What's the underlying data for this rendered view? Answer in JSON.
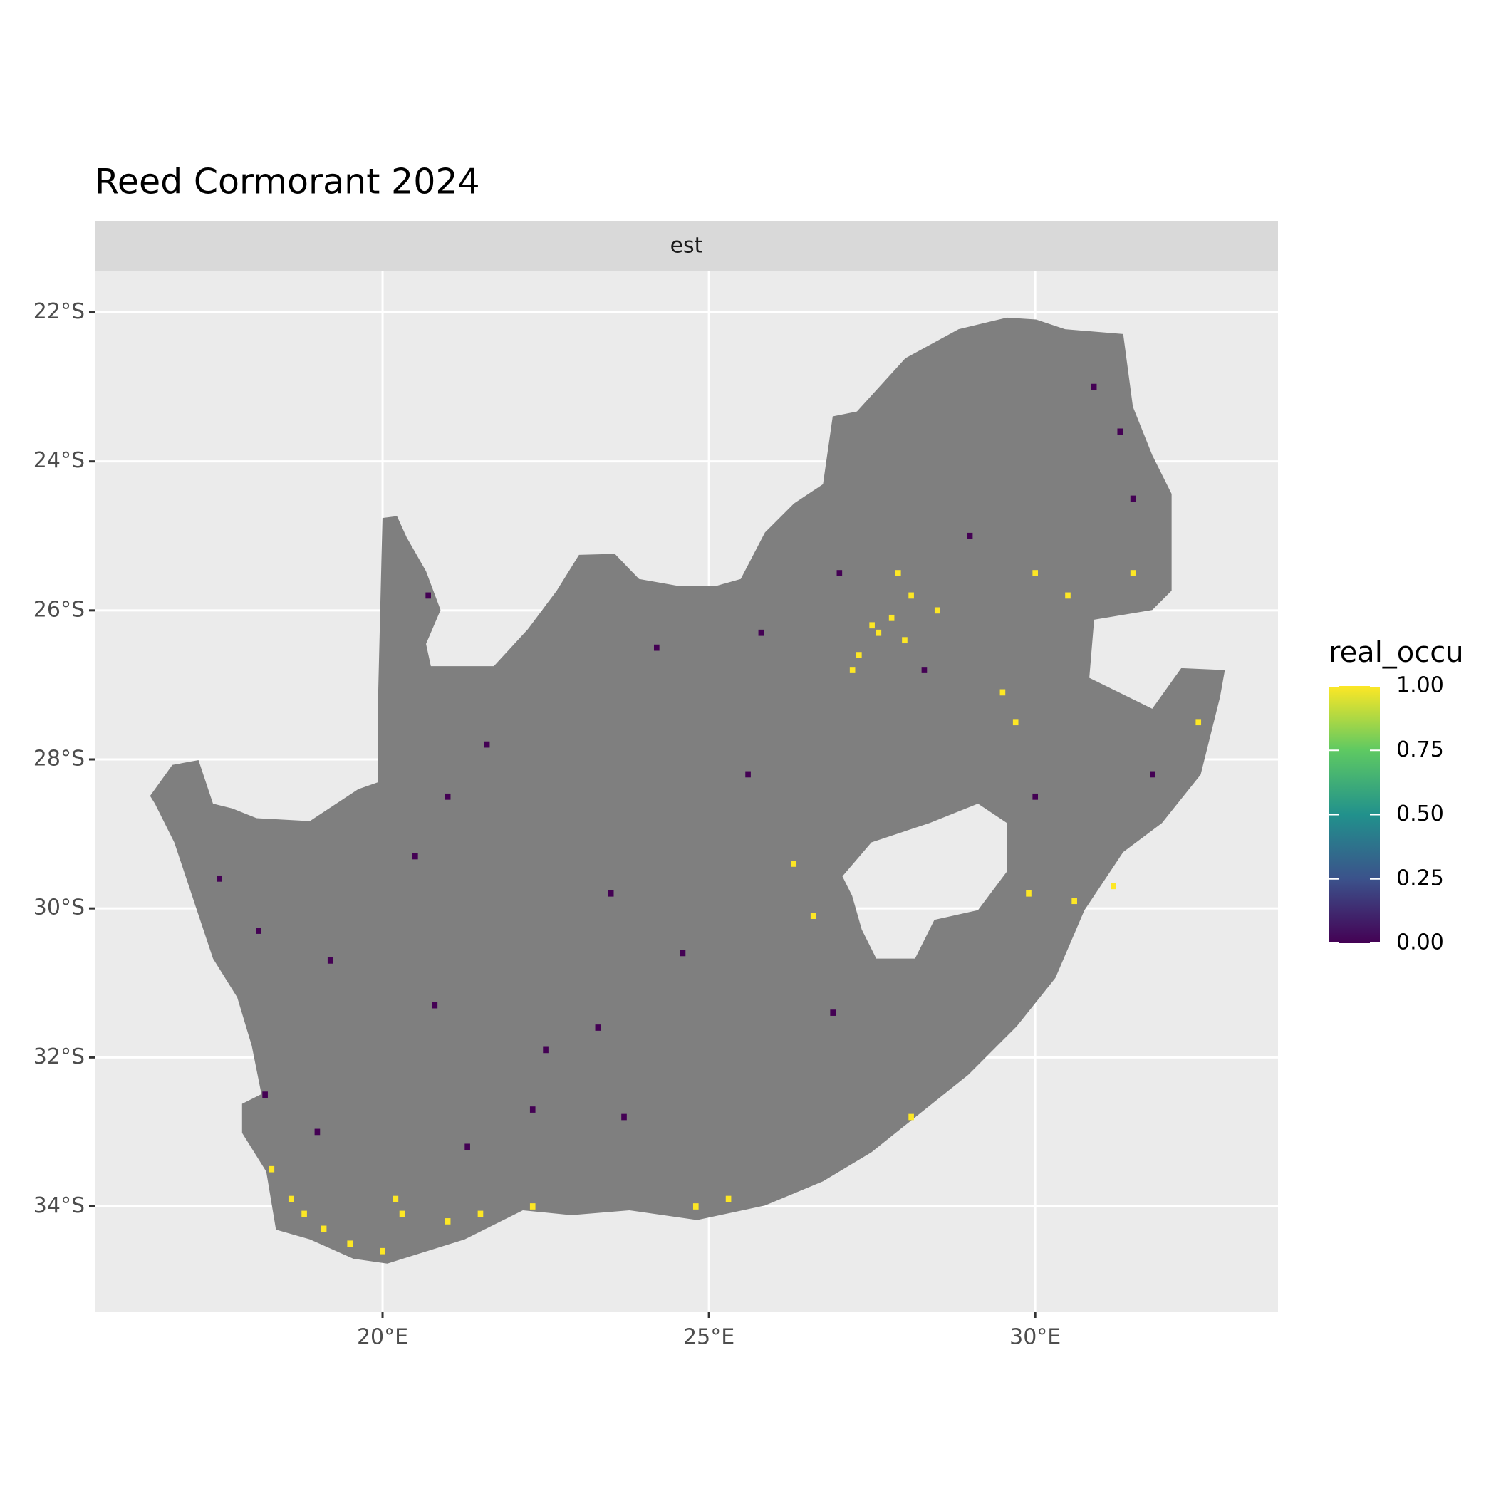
{
  "chart_data": {
    "type": "raster",
    "title": "Reed Cormorant 2024",
    "facet": "est",
    "xlim": [
      15.59,
      33.72
    ],
    "ylim": [
      -35.42,
      -21.45
    ],
    "xticks": [
      {
        "value": 20,
        "label": "20°E"
      },
      {
        "value": 25,
        "label": "25°E"
      },
      {
        "value": 30,
        "label": "30°E"
      }
    ],
    "yticks": [
      {
        "value": -22,
        "label": "22°S"
      },
      {
        "value": -24,
        "label": "24°S"
      },
      {
        "value": -26,
        "label": "26°S"
      },
      {
        "value": -28,
        "label": "28°S"
      },
      {
        "value": -30,
        "label": "30°S"
      },
      {
        "value": -32,
        "label": "32°S"
      },
      {
        "value": -34,
        "label": "34°S"
      }
    ],
    "grid": true,
    "na_color": "#7f7f7f",
    "colors": [
      "#440154",
      "#3b528b",
      "#21918c",
      "#5ec962",
      "#fde725"
    ],
    "legend": {
      "title": "real_occu",
      "limits": [
        0,
        1
      ],
      "ticks": [
        {
          "value": 0,
          "label": "0.00"
        },
        {
          "value": 0.25,
          "label": "0.25"
        },
        {
          "value": 0.5,
          "label": "0.50"
        },
        {
          "value": 0.75,
          "label": "0.75"
        },
        {
          "value": 1,
          "label": "1.00"
        }
      ]
    },
    "cells": {
      "x": [
        27.5,
        27.6,
        27.8,
        28.0,
        27.3,
        27.2,
        28.1,
        27.9,
        28.5,
        29.5,
        29.7,
        30.0,
        30.5,
        31.5,
        29.9,
        30.6,
        26.3,
        26.6,
        18.6,
        18.8,
        19.1,
        19.5,
        20.0,
        20.3,
        21.0,
        21.5,
        22.3,
        24.8,
        25.3,
        28.1,
        32.5,
        31.2,
        20.2,
        18.3,
        30.9,
        31.5,
        31.3,
        28.3,
        29.0,
        27.0,
        25.8,
        24.2,
        21.6,
        21.0,
        17.5,
        18.1,
        19.2,
        20.8,
        22.5,
        23.3,
        22.3,
        21.3,
        19.0,
        18.2,
        23.5,
        24.6,
        26.9,
        30.0,
        31.8,
        20.5,
        25.6,
        23.7,
        20.7
      ],
      "y": [
        -26.2,
        -26.3,
        -26.1,
        -26.4,
        -26.6,
        -26.8,
        -25.8,
        -25.5,
        -26.0,
        -27.1,
        -27.5,
        -25.5,
        -25.8,
        -25.5,
        -29.8,
        -29.9,
        -29.4,
        -30.1,
        -33.9,
        -34.1,
        -34.3,
        -34.5,
        -34.6,
        -34.1,
        -34.2,
        -34.1,
        -34.0,
        -34.0,
        -33.9,
        -32.8,
        -27.5,
        -29.7,
        -33.9,
        -33.5,
        -23.0,
        -24.5,
        -23.6,
        -26.8,
        -25.0,
        -25.5,
        -26.3,
        -26.5,
        -27.8,
        -28.5,
        -29.6,
        -30.3,
        -30.7,
        -31.3,
        -31.9,
        -31.6,
        -32.7,
        -33.2,
        -33.0,
        -32.5,
        -29.8,
        -30.6,
        -31.4,
        -28.5,
        -28.2,
        -29.3,
        -28.2,
        -32.8,
        -25.8
      ],
      "values": [
        1,
        1,
        1,
        1,
        1,
        1,
        1,
        1,
        1,
        1,
        1,
        1,
        1,
        1,
        1,
        1,
        1,
        1,
        1,
        1,
        1,
        1,
        1,
        1,
        1,
        1,
        1,
        1,
        1,
        1,
        1,
        1,
        1,
        1,
        0,
        0,
        0,
        0,
        0,
        0,
        0,
        0,
        0,
        0,
        0,
        0,
        0,
        0,
        0,
        0,
        0,
        0,
        0,
        0,
        0,
        0,
        0,
        0,
        0,
        0,
        0,
        0,
        0
      ]
    }
  }
}
